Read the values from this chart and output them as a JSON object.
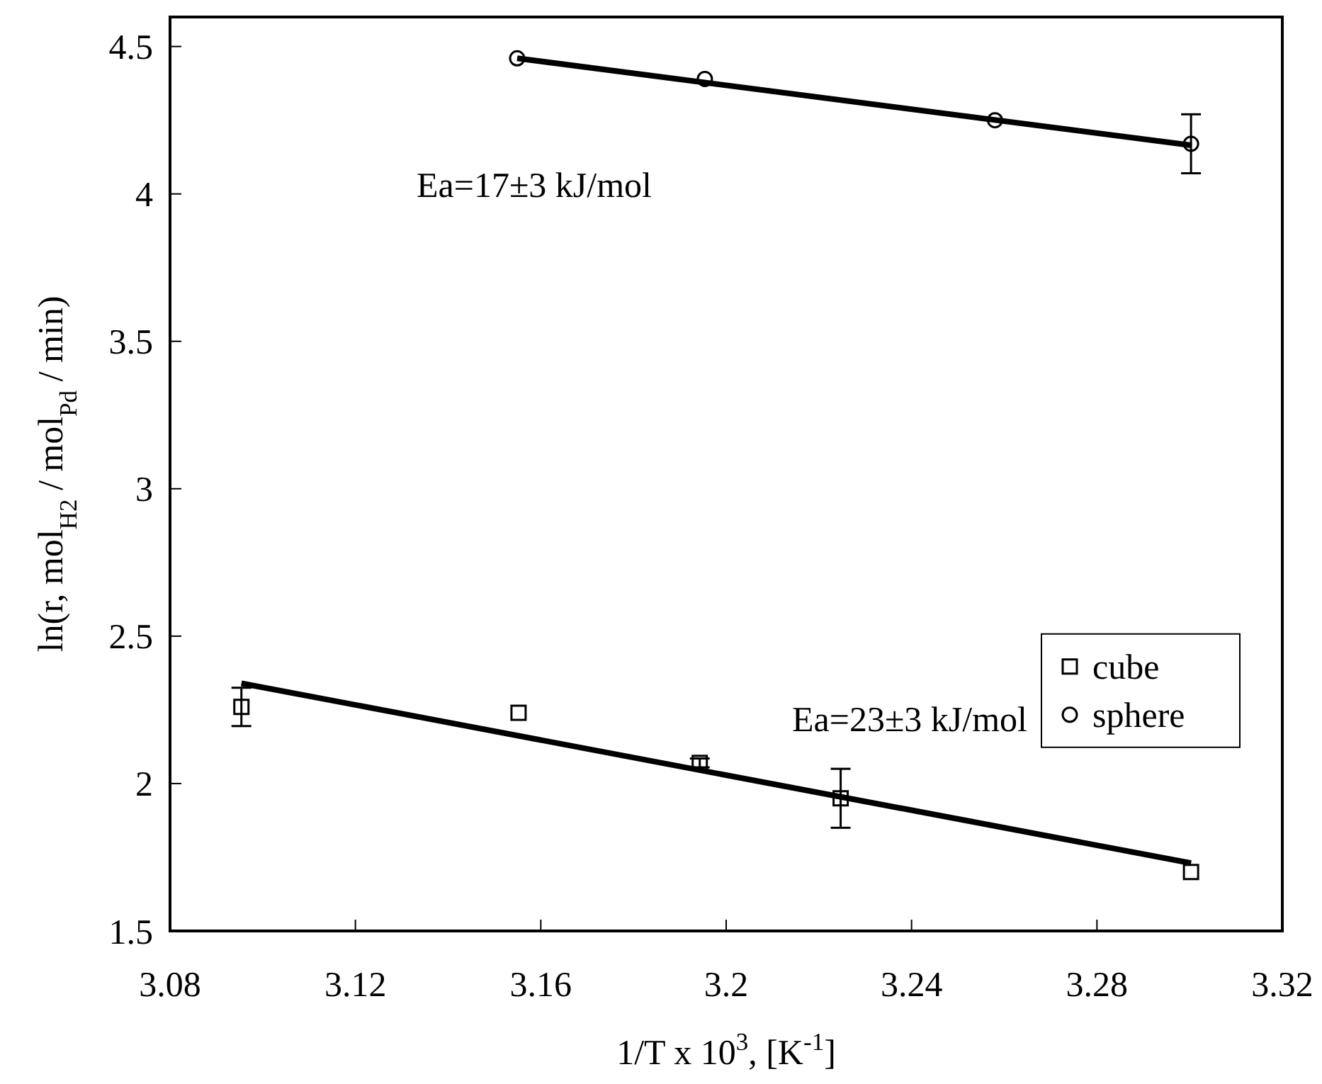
{
  "chart_data": {
    "type": "scatter",
    "xlabel": "1/T x 10$^{3}$, [K$^{-1}$]",
    "ylabel": "ln(r, mol$_{H2}$ / mol$_{Pd}$ / min)",
    "xlim": [
      3.08,
      3.32
    ],
    "xticks": [
      3.08,
      3.12,
      3.16,
      3.2,
      3.24,
      3.28,
      3.32
    ],
    "ylim": [
      1.5,
      4.6
    ],
    "yticks": [
      1.5,
      2,
      2.5,
      3,
      3.5,
      4,
      4.5
    ],
    "grid": false,
    "legend": "right",
    "series": [
      {
        "name": "cube",
        "marker": "square",
        "color": "#000000",
        "x": [
          3.0954,
          3.1552,
          3.1943,
          3.2247,
          3.3003
        ],
        "values": [
          2.26,
          2.24,
          2.07,
          1.95,
          1.7
        ],
        "errors": [
          0.065,
          null,
          0.015,
          0.1,
          null
        ]
      },
      {
        "name": "sphere",
        "marker": "circle",
        "color": "#000000",
        "x": [
          3.1549,
          3.1954,
          3.258,
          3.3003
        ],
        "values": [
          4.46,
          4.39,
          4.25,
          4.17
        ],
        "errors": [
          null,
          null,
          null,
          0.1
        ]
      },
      {
        "type": "line",
        "marker": "none",
        "color": "#000000",
        "x": [
          3.0954,
          3.3003
        ],
        "values": [
          2.34,
          1.73
        ]
      },
      {
        "type": "line",
        "marker": "none",
        "color": "#000000",
        "x": [
          3.1549,
          3.3003
        ],
        "values": [
          4.46,
          4.165
        ]
      }
    ],
    "annotations": [
      "Ea=17±3 kJ/mol",
      "Ea=23±3 kJ/mol"
    ]
  }
}
